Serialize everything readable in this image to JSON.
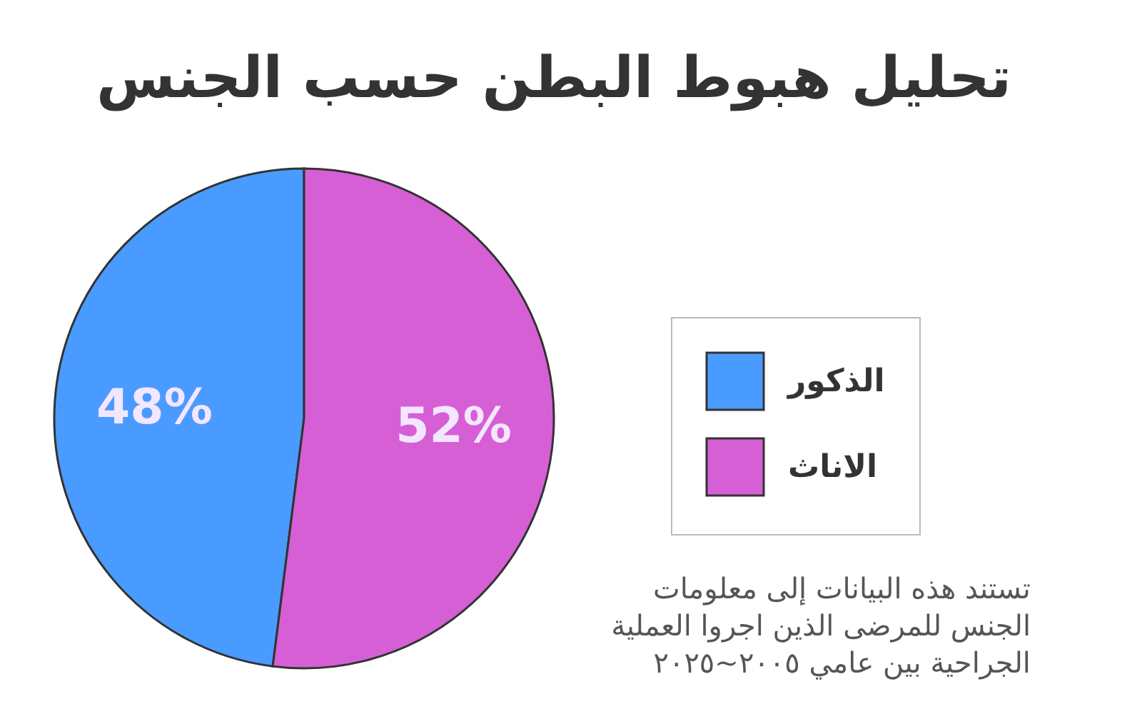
{
  "chart_data": {
    "type": "pie",
    "title": "تحليل هبوط البطن حسب الجنس",
    "categories": [
      "الذكور",
      "الاناث"
    ],
    "values": [
      48,
      52
    ],
    "colors": [
      "#4a9bff",
      "#d65fd6"
    ],
    "value_labels": [
      "48%",
      "52%"
    ],
    "legend": "right",
    "annotations": [
      "تستند هذه البيانات إلى معلومات\nالجنس للمرضى الذين اجروا العملية\nالجراحية بين عامي ٢٠٠٥~٢٠٢٥"
    ]
  }
}
